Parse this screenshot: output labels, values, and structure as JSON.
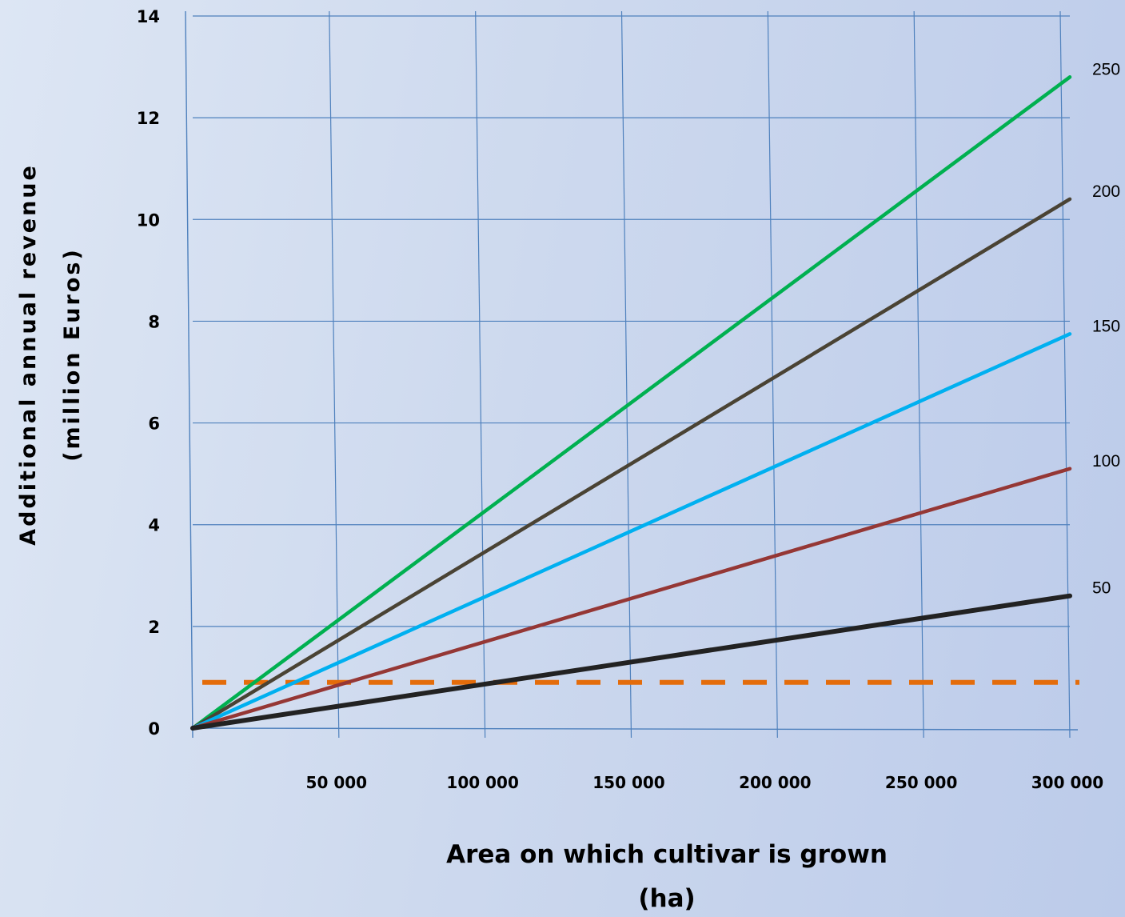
{
  "chart_data": {
    "type": "line",
    "title": "",
    "xlabel_lines": [
      "Area on which cultivar is grown",
      "(ha)"
    ],
    "ylabel_lines": [
      "Additional annual revenue",
      "(million Euros)"
    ],
    "xlim": [
      0,
      300000
    ],
    "ylim": [
      0,
      14
    ],
    "grid": true,
    "x_ticks": [
      50000,
      100000,
      150000,
      200000,
      250000,
      300000
    ],
    "x_tick_labels": [
      "50 000",
      "100 000",
      "150 000",
      "200 000",
      "250 000",
      "300 000"
    ],
    "y_ticks": [
      0,
      2,
      4,
      6,
      8,
      10,
      12,
      14
    ],
    "y_tick_labels": [
      "0",
      "2",
      "4",
      "6",
      "8",
      "10",
      "12",
      "14"
    ],
    "series": [
      {
        "name": "250",
        "color": "#00b050",
        "x": [
          0,
          300000
        ],
        "y": [
          0,
          12.8
        ]
      },
      {
        "name": "200",
        "color": "#4a4334",
        "x": [
          0,
          300000
        ],
        "y": [
          0,
          10.4
        ]
      },
      {
        "name": "150",
        "color": "#00b0f0",
        "x": [
          0,
          300000
        ],
        "y": [
          0,
          7.75
        ]
      },
      {
        "name": "100",
        "color": "#953735",
        "x": [
          0,
          300000
        ],
        "y": [
          0,
          5.1
        ]
      },
      {
        "name": "50",
        "color": "#222222",
        "x": [
          0,
          300000
        ],
        "y": [
          0,
          2.6
        ]
      }
    ],
    "reference_line": {
      "y": 0.9,
      "color": "#e46c0a",
      "style": "dashed"
    }
  }
}
